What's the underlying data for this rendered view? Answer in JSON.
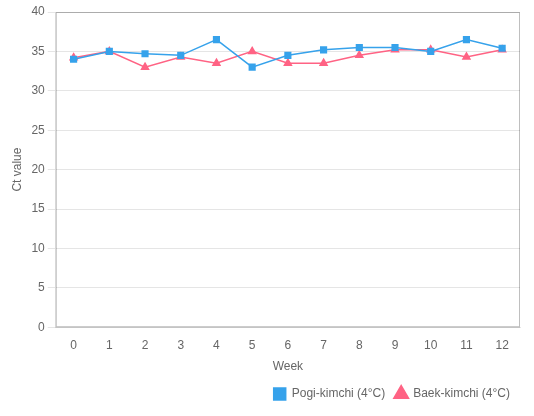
{
  "chart_data": {
    "type": "line",
    "x": [
      0,
      1,
      2,
      3,
      4,
      5,
      6,
      7,
      8,
      9,
      10,
      11,
      12
    ],
    "series": [
      {
        "name": "Pogi-kimchi (4°C)",
        "marker": "square",
        "values": [
          34.0,
          35.0,
          34.7,
          34.5,
          36.5,
          33.0,
          34.5,
          35.2,
          35.5,
          35.5,
          35.0,
          36.5,
          35.4
        ]
      },
      {
        "name": "Baek-kimchi (4°C)",
        "marker": "triangle",
        "values": [
          34.2,
          35.0,
          33.0,
          34.3,
          33.5,
          35.0,
          33.5,
          33.5,
          34.5,
          35.2,
          35.2,
          34.3,
          35.2
        ]
      }
    ],
    "x_label": "Week",
    "y_label": "Ct value",
    "xlim": [
      -0.5,
      12.5
    ],
    "xticks": [
      0,
      1,
      2,
      3,
      4,
      5,
      6,
      7,
      8,
      9,
      10,
      11,
      12
    ],
    "ylim": [
      0,
      40
    ],
    "yticks": [
      0,
      5,
      10,
      15,
      20,
      25,
      30,
      35,
      40
    ],
    "grid": "y",
    "legend": "lower right"
  }
}
